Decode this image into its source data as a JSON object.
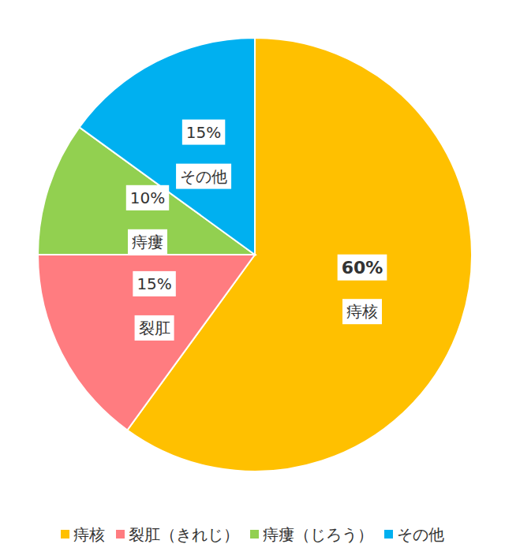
{
  "chart_data": {
    "type": "pie",
    "categories": [
      "痔核",
      "裂肛",
      "痔瘻",
      "その他"
    ],
    "legend_labels": [
      "痔核",
      "裂肛（きれじ）",
      "痔瘻（じろう）",
      "その他"
    ],
    "values": [
      60,
      15,
      10,
      15
    ],
    "value_labels": [
      "60%",
      "15%",
      "10%",
      "15%"
    ],
    "colors": [
      "#ffc000",
      "#ff7c80",
      "#92d050",
      "#00b0f0"
    ],
    "data_labels": true,
    "legend": "bottom"
  }
}
